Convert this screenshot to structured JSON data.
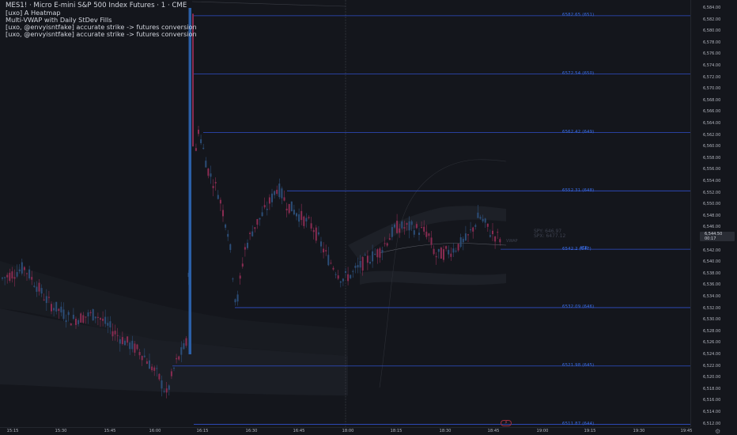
{
  "header": {
    "title": "MES1! · Micro E-mini S&P 500 Index Futures · 1 · CME",
    "indicators": [
      "[uxo] A Heatmap",
      "Multi-VWAP with Daily StDev Fills",
      "[uxo, @envyisntfake] accurate strike -> futures conversion",
      "[uxo, @envyisntfake] accurate strike -> futures conversion"
    ]
  },
  "price_axis": {
    "ticks": [
      "6,584.00",
      "6,582.00",
      "6,580.00",
      "6,578.00",
      "6,576.00",
      "6,574.00",
      "6,572.00",
      "6,570.00",
      "6,568.00",
      "6,566.00",
      "6,564.00",
      "6,562.00",
      "6,560.00",
      "6,558.00",
      "6,556.00",
      "6,554.00",
      "6,552.00",
      "6,550.00",
      "6,548.00",
      "6,546.00",
      "6,544.00",
      "6,542.00",
      "6,540.00",
      "6,538.00",
      "6,536.00",
      "6,534.00",
      "6,532.00",
      "6,530.00",
      "6,528.00",
      "6,526.00",
      "6,524.00",
      "6,522.00",
      "6,520.00",
      "6,518.00",
      "6,516.00",
      "6,514.00",
      "6,512.00"
    ],
    "last_price": "6,544.50",
    "countdown": "00:17"
  },
  "time_axis": {
    "ticks": [
      "15:15",
      "15:30",
      "15:45",
      "16:00",
      "16:15",
      "16:30",
      "16:45",
      "18:00",
      "18:15",
      "18:30",
      "18:45",
      "19:00",
      "19:15",
      "19:30",
      "19:45"
    ]
  },
  "strike_levels": [
    {
      "label": "6582.65 (651)",
      "price": 6582.65
    },
    {
      "label": "6572.54 (650)",
      "price": 6572.54
    },
    {
      "label": "6562.42 (649)",
      "price": 6562.42
    },
    {
      "label": "6552.31 (648)",
      "price": 6552.31
    },
    {
      "label": "6542.2 (647)",
      "price": 6542.2
    },
    {
      "label": "6532.09 (646)",
      "price": 6532.09
    },
    {
      "label": "6521.98 (645)",
      "price": 6521.98
    },
    {
      "label": "6511.87 (644)",
      "price": 6511.87
    }
  ],
  "atr_label": "ATR",
  "annotations": {
    "spy": "SPY: 646.97",
    "spx": "SPX: 6477.12",
    "vwap": "VWAP"
  },
  "colors": {
    "background": "#14161c",
    "up_candle": "#2c4e78",
    "down_candle": "#8a2c52",
    "strike_line": "#2f4fc9",
    "strike_label": "#3b6fe8"
  },
  "icons": {
    "settings": "gear-icon",
    "goto_realtime": "lightning-icon"
  }
}
